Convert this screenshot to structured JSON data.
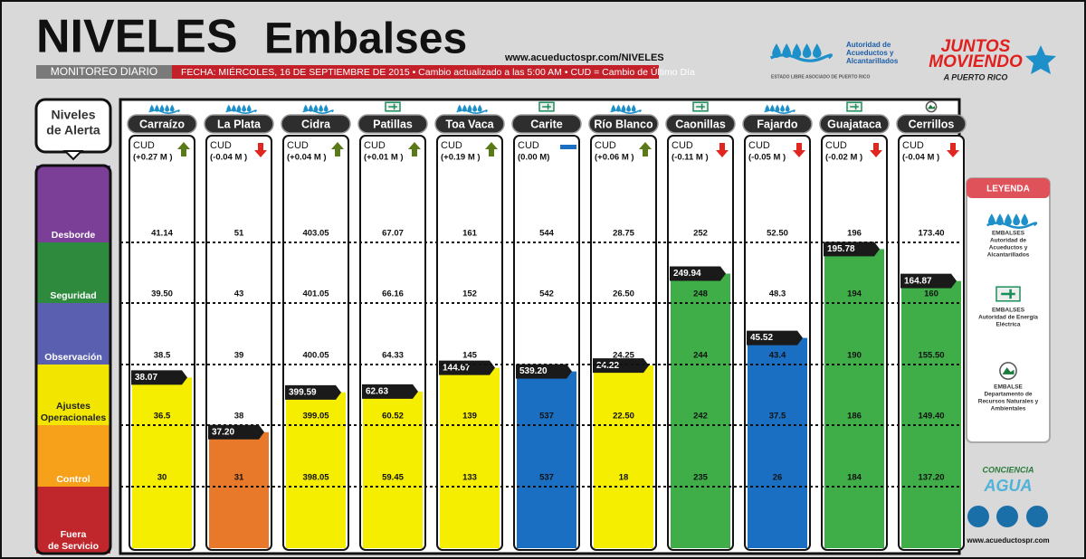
{
  "header": {
    "title_part1": "NIVELES",
    "title_part2": "Embalses",
    "url": "www.acueductospr.com/NIVELES",
    "subtitle": "MONITOREO DIARIO",
    "date_line": "FECHA: MIÉRCOLES, 16 DE SEPTIEMBRE DE 2015 • Cambio actualizado a las 5:00 AM • CUD = Cambio de Último Día",
    "agency_lines": [
      "Autoridad de",
      "Acueductos y",
      "Alcantarillados"
    ],
    "agency_footer": "ESTADO LIBRE ASOCIADO DE PUERTO RICO",
    "slogan_lines": [
      "JUNTOS",
      "MOVIENDO",
      "A PUERTO RICO"
    ]
  },
  "alert_panel": {
    "title_lines": [
      "Niveles",
      "de Alerta"
    ],
    "levels": [
      {
        "label": [
          "Desborde"
        ],
        "color": "#7b3f98"
      },
      {
        "label": [
          "Seguridad"
        ],
        "color": "#2e8b3e"
      },
      {
        "label": [
          "Observación"
        ],
        "color": "#5b5fb0"
      },
      {
        "label": [
          "Ajustes",
          "Operacionales"
        ],
        "color": "#f2e600"
      },
      {
        "label": [
          "Control"
        ],
        "color": "#f7a11a"
      },
      {
        "label": [
          "Fuera",
          "de Servicio"
        ],
        "color": "#c0272d"
      }
    ]
  },
  "cud_label": "CUD",
  "reservoirs": [
    {
      "name": "Carraízo",
      "agency": "AAA",
      "trend": "up",
      "change": "(+0.27 M )",
      "current": "38.07",
      "color": "#f5ee00",
      "thresholds": [
        "41.14",
        "39.50",
        "38.5",
        "36.5",
        "30"
      ]
    },
    {
      "name": "La Plata",
      "agency": "AAA",
      "trend": "down",
      "change": "(-0.04 M )",
      "current": "37.20",
      "color": "#e8792a",
      "thresholds": [
        "51",
        "43",
        "39",
        "38",
        "31"
      ]
    },
    {
      "name": "Cidra",
      "agency": "AAA",
      "trend": "up",
      "change": "(+0.04 M )",
      "current": "399.59",
      "color": "#f5ee00",
      "thresholds": [
        "403.05",
        "401.05",
        "400.05",
        "399.05",
        "398.05"
      ]
    },
    {
      "name": "Patillas",
      "agency": "AEE",
      "trend": "up",
      "change": "(+0.01 M )",
      "current": "62.63",
      "color": "#f5ee00",
      "thresholds": [
        "67.07",
        "66.16",
        "64.33",
        "60.52",
        "59.45"
      ]
    },
    {
      "name": "Toa Vaca",
      "agency": "AAA",
      "trend": "up",
      "change": "(+0.19 M )",
      "current": "144.67",
      "color": "#f5ee00",
      "thresholds": [
        "161",
        "152",
        "145",
        "139",
        "133"
      ]
    },
    {
      "name": "Carite",
      "agency": "AEE",
      "trend": "flat",
      "change": "(0.00 M)",
      "current": "539.20",
      "color": "#1a6fc2",
      "thresholds": [
        "544",
        "542",
        null,
        "537",
        "537"
      ]
    },
    {
      "name": "Río Blanco",
      "agency": "AAA",
      "trend": "up",
      "change": "(+0.06 M )",
      "current": "24.22",
      "color": "#f5ee00",
      "thresholds": [
        "28.75",
        "26.50",
        "24.25",
        "22.50",
        "18"
      ]
    },
    {
      "name": "Caonillas",
      "agency": "AEE",
      "trend": "down",
      "change": "(-0.11 M )",
      "current": "249.94",
      "color": "#3fae48",
      "thresholds": [
        "252",
        "248",
        "244",
        "242",
        "235"
      ]
    },
    {
      "name": "Fajardo",
      "agency": "AAA",
      "trend": "down",
      "change": "(-0.05 M )",
      "current": "45.52",
      "color": "#1a6fc2",
      "thresholds": [
        "52.50",
        "48.3",
        "43.4",
        "37.5",
        "26"
      ]
    },
    {
      "name": "Guajataca",
      "agency": "AEE",
      "trend": "down",
      "change": "(-0.02 M )",
      "current": "195.78",
      "color": "#3fae48",
      "thresholds": [
        "196",
        "194",
        "190",
        "186",
        "184"
      ]
    },
    {
      "name": "Cerrillos",
      "agency": "DRNA",
      "trend": "down",
      "change": "(-0.04 M )",
      "current": "164.87",
      "color": "#3fae48",
      "thresholds": [
        "173.40",
        "160",
        "155.50",
        "149.40",
        "137.20"
      ]
    }
  ],
  "legend": {
    "title": "LEYENDA",
    "entries": [
      {
        "agency": "AAA",
        "lines": [
          "EMBALSES",
          "Autoridad de",
          "Acueductos y",
          "Alcantarillados"
        ]
      },
      {
        "agency": "AEE",
        "lines": [
          "EMBALSES",
          "Autoridad de Energía",
          "Eléctrica"
        ]
      },
      {
        "agency": "DRNA",
        "lines": [
          "EMBALSE",
          "Departamento de",
          "Recursos Naturales y",
          "Ambientales"
        ]
      }
    ]
  },
  "footer": {
    "campaign_lines": [
      "CONCIENCIA",
      "AGUA"
    ],
    "url": "www.acueductospr.com"
  }
}
